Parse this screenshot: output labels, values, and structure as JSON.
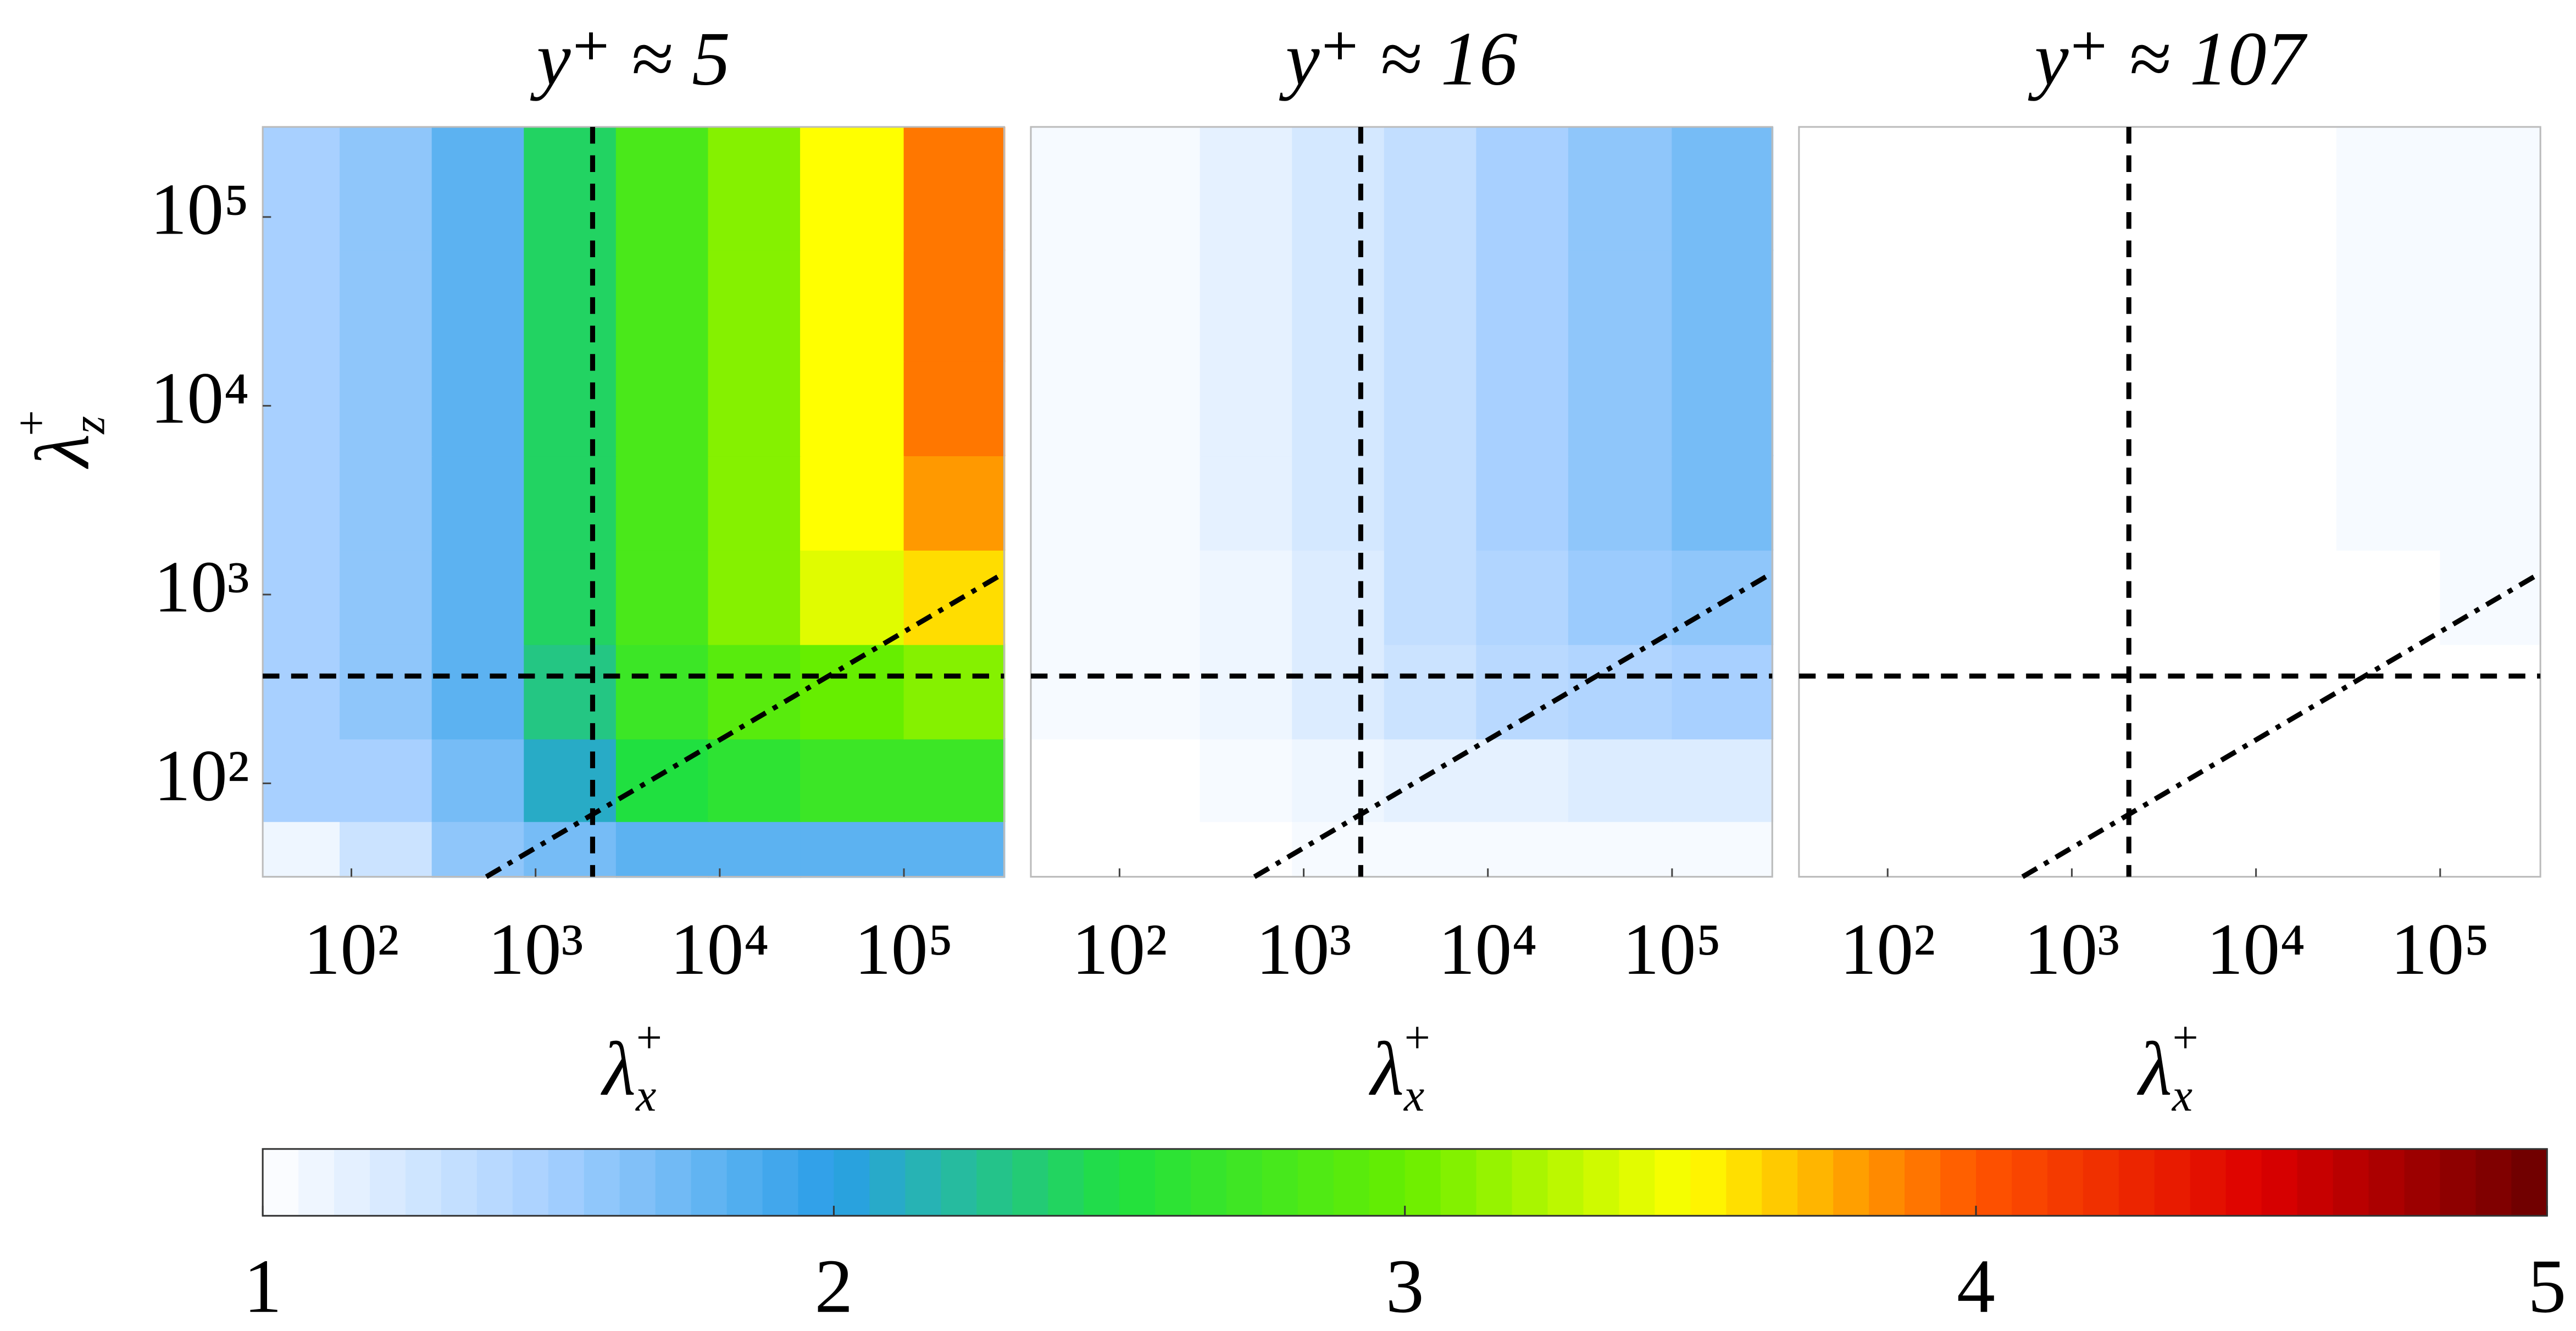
{
  "chart_data": [
    {
      "type": "contour",
      "title": "y⁺ ≈ 5",
      "xlabel": [
        "λ",
        "x",
        "+"
      ],
      "ylabel": [
        "λ",
        "z",
        "+"
      ],
      "xlim": [
        33,
        350000
      ],
      "ylim": [
        32,
        300000
      ],
      "log_x": true,
      "log_y": true,
      "xticks": [
        {
          "value": 100,
          "label": "10²"
        },
        {
          "value": 1000,
          "label": "10³"
        },
        {
          "value": 10000,
          "label": "10⁴"
        },
        {
          "value": 100000,
          "label": "10⁵"
        }
      ],
      "yticks": [
        {
          "value": 100,
          "label": "10²"
        },
        {
          "value": 1000,
          "label": "10³"
        },
        {
          "value": 10000,
          "label": "10⁴"
        },
        {
          "value": 100000,
          "label": "10⁵"
        }
      ],
      "x": [
        50,
        150,
        500,
        1500,
        5000,
        15000,
        50000,
        200000
      ],
      "y": [
        40,
        100,
        300,
        1000,
        3000,
        10000,
        30000,
        150000
      ],
      "z": [
        [
          1.1,
          1.3,
          1.6,
          1.7,
          1.8,
          1.8,
          1.8,
          1.8
        ],
        [
          1.5,
          1.5,
          1.7,
          2.1,
          2.5,
          2.6,
          2.7,
          2.7
        ],
        [
          1.5,
          1.6,
          1.8,
          2.3,
          2.7,
          2.9,
          3.0,
          3.1
        ],
        [
          1.5,
          1.6,
          1.8,
          2.4,
          2.8,
          3.1,
          3.4,
          3.6
        ],
        [
          1.5,
          1.6,
          1.8,
          2.4,
          2.8,
          3.1,
          3.5,
          3.8
        ],
        [
          1.5,
          1.6,
          1.8,
          2.4,
          2.8,
          3.1,
          3.5,
          3.9
        ],
        [
          1.5,
          1.6,
          1.8,
          2.4,
          2.8,
          3.1,
          3.5,
          3.9
        ],
        [
          1.5,
          1.6,
          1.8,
          2.4,
          2.8,
          3.1,
          3.5,
          3.9
        ]
      ],
      "vlines": [
        2040
      ],
      "hlines": [
        370
      ],
      "ref_line": {
        "x": [
          540,
          350000
        ],
        "y": [
          32,
          1300
        ]
      }
    },
    {
      "type": "contour",
      "title": "y⁺ ≈ 16",
      "xlabel": [
        "λ",
        "x",
        "+"
      ],
      "xlim": [
        33,
        350000
      ],
      "ylim": [
        32,
        300000
      ],
      "log_x": true,
      "log_y": true,
      "xticks": [
        {
          "value": 100,
          "label": "10²"
        },
        {
          "value": 1000,
          "label": "10³"
        },
        {
          "value": 10000,
          "label": "10⁴"
        },
        {
          "value": 100000,
          "label": "10⁵"
        }
      ],
      "x": [
        50,
        150,
        500,
        1500,
        5000,
        15000,
        50000,
        200000
      ],
      "y": [
        40,
        100,
        300,
        1000,
        3000,
        10000,
        30000,
        150000
      ],
      "z": [
        [
          1.0,
          1.0,
          1.0,
          1.05,
          1.05,
          1.05,
          1.05,
          1.05
        ],
        [
          1.0,
          1.0,
          1.05,
          1.1,
          1.15,
          1.15,
          1.2,
          1.2
        ],
        [
          1.05,
          1.05,
          1.1,
          1.2,
          1.3,
          1.4,
          1.45,
          1.5
        ],
        [
          1.05,
          1.05,
          1.1,
          1.2,
          1.35,
          1.45,
          1.55,
          1.6
        ],
        [
          1.05,
          1.05,
          1.15,
          1.25,
          1.35,
          1.5,
          1.6,
          1.7
        ],
        [
          1.05,
          1.05,
          1.15,
          1.25,
          1.35,
          1.5,
          1.6,
          1.7
        ],
        [
          1.05,
          1.05,
          1.15,
          1.25,
          1.35,
          1.5,
          1.6,
          1.7
        ],
        [
          1.05,
          1.05,
          1.15,
          1.25,
          1.35,
          1.5,
          1.6,
          1.7
        ]
      ],
      "vlines": [
        2040
      ],
      "hlines": [
        370
      ],
      "ref_line": {
        "x": [
          540,
          350000
        ],
        "y": [
          32,
          1300
        ]
      }
    },
    {
      "type": "contour",
      "title": "y⁺ ≈ 107",
      "xlabel": [
        "λ",
        "x",
        "+"
      ],
      "xlim": [
        33,
        350000
      ],
      "ylim": [
        32,
        300000
      ],
      "log_x": true,
      "log_y": true,
      "xticks": [
        {
          "value": 100,
          "label": "10²"
        },
        {
          "value": 1000,
          "label": "10³"
        },
        {
          "value": 10000,
          "label": "10⁴"
        },
        {
          "value": 100000,
          "label": "10⁵"
        }
      ],
      "x": [
        50,
        150,
        500,
        1500,
        5000,
        15000,
        50000,
        200000
      ],
      "y": [
        40,
        100,
        300,
        1000,
        3000,
        10000,
        30000,
        150000
      ],
      "z": [
        [
          1,
          1,
          1,
          1,
          1,
          1,
          1,
          1
        ],
        [
          1,
          1,
          1,
          1,
          1,
          1,
          1,
          1
        ],
        [
          1,
          1,
          1,
          1,
          1,
          1,
          1,
          1
        ],
        [
          1,
          1,
          1,
          1,
          1,
          1,
          1,
          1.05
        ],
        [
          1,
          1,
          1,
          1,
          1,
          1,
          1.05,
          1.05
        ],
        [
          1,
          1,
          1,
          1,
          1,
          1,
          1.05,
          1.05
        ],
        [
          1,
          1,
          1,
          1,
          1,
          1,
          1.05,
          1.05
        ],
        [
          1,
          1,
          1,
          1,
          1,
          1,
          1.05,
          1.05
        ]
      ],
      "vlines": [
        2040
      ],
      "hlines": [
        370
      ],
      "ref_line": {
        "x": [
          540,
          350000
        ],
        "y": [
          32,
          1300
        ]
      }
    },
    {
      "type": "colorbar",
      "clim": [
        1,
        5
      ],
      "ticks": [
        1,
        2,
        3,
        4,
        5
      ],
      "colormap": [
        "#ffffff",
        "#a8d0ff",
        "#2a9ee8",
        "#20e040",
        "#66ee00",
        "#ffff00",
        "#ff5500",
        "#dd0000",
        "#6a0000"
      ]
    }
  ]
}
